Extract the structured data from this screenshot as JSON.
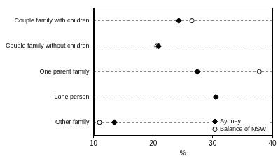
{
  "chart_data": {
    "type": "dot",
    "categories": [
      "Couple family with children",
      "Couple family without children",
      "One parent family",
      "Lone person",
      "Other family"
    ],
    "series": [
      {
        "name": "Sydney",
        "color": "#000000",
        "marker": "diamond",
        "values": [
          24.3,
          20.9,
          27.4,
          30.5,
          13.5
        ]
      },
      {
        "name": "Balance of NSW",
        "color": "#000000",
        "marker": "open_circle",
        "values": [
          26.5,
          20.6,
          37.8,
          30.6,
          11.0
        ]
      }
    ],
    "orientation": "horizontal",
    "x_label": "%",
    "xlim": [
      10,
      40
    ],
    "xticks": [
      10,
      20,
      30,
      40
    ],
    "grid": true,
    "legend": "lower right"
  }
}
